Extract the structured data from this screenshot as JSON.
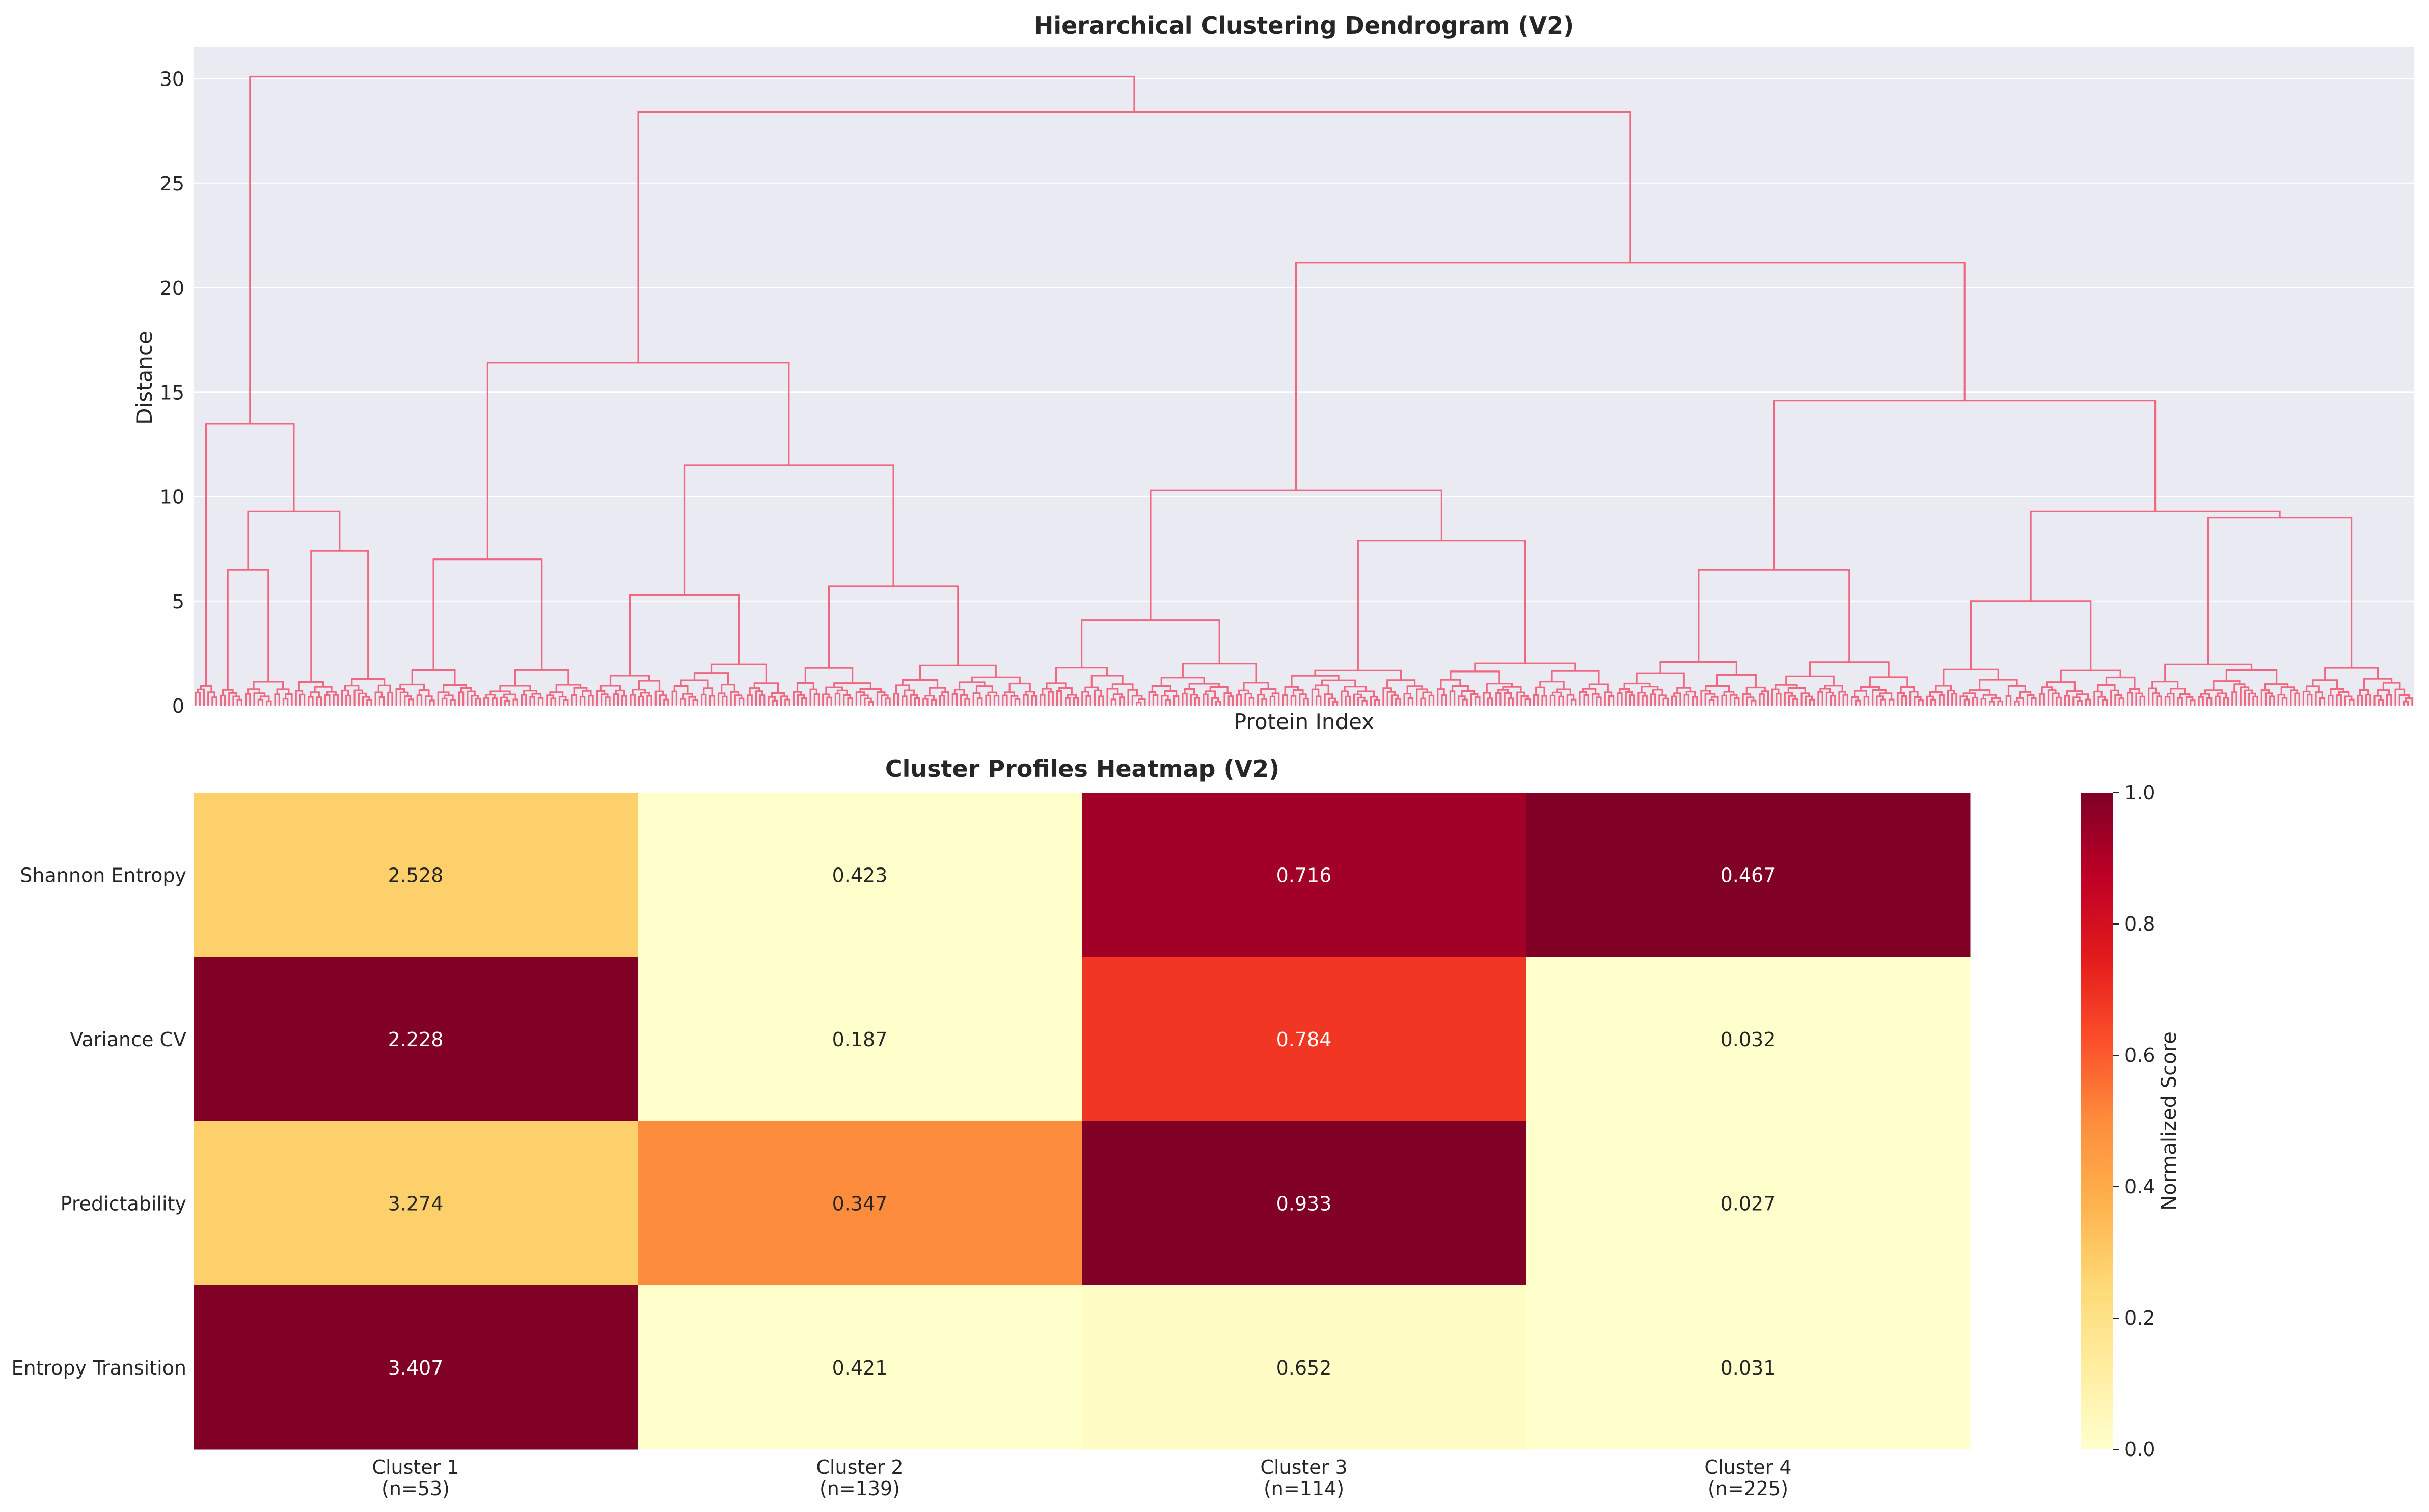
{
  "chart_data": [
    {
      "type": "dendrogram",
      "title": "Hierarchical Clustering Dendrogram (V2)",
      "xlabel": "Protein Index",
      "ylabel": "Distance",
      "ylim": [
        0,
        31.5
      ],
      "yticks": [
        0,
        5,
        10,
        15,
        20,
        25,
        30
      ],
      "grid": true,
      "link_color": "#f0677f",
      "background_color": "#eaeaf2",
      "n_leaves": 531,
      "major_merges": [
        {
          "x": [
            5,
            29
          ],
          "height": 30.1
        },
        {
          "x": [
            29,
            57
          ],
          "height": 28.4
        },
        {
          "x": [
            57,
            71
          ],
          "height": 21.2
        },
        {
          "x": [
            71,
            85
          ],
          "height": 14.6
        },
        {
          "x": [
            85,
            97
          ],
          "height": 9.3
        },
        {
          "x": [
            97,
            100
          ],
          "height": 9.0
        },
        {
          "x": [
            37,
            50
          ],
          "height": 11.5
        },
        {
          "x": [
            21,
            37
          ],
          "height": 16.4
        },
        {
          "x": [
            40,
            55
          ],
          "height": 10.3
        },
        {
          "x": [
            52,
            60
          ],
          "height": 7.9
        },
        {
          "x": [
            0,
            4
          ],
          "height": 13.5
        },
        {
          "x": [
            1,
            6
          ],
          "height": 9.3
        }
      ]
    },
    {
      "type": "heatmap",
      "title": "Cluster Profiles Heatmap (V2)",
      "columns": [
        "Cluster 1\n(n=53)",
        "Cluster 2\n(n=139)",
        "Cluster 3\n(n=114)",
        "Cluster 4\n(n=225)"
      ],
      "rows": [
        "Shannon Entropy",
        "Variance CV",
        "Predictability",
        "Entropy Transition"
      ],
      "annotations": [
        [
          "2.528",
          "0.423",
          "0.716",
          "0.467"
        ],
        [
          "2.228",
          "0.187",
          "0.784",
          "0.032"
        ],
        [
          "3.274",
          "0.347",
          "0.933",
          "0.027"
        ],
        [
          "3.407",
          "0.421",
          "0.652",
          "0.031"
        ]
      ],
      "normalized_values": [
        [
          0.28,
          0.0,
          0.93,
          1.0
        ],
        [
          1.0,
          0.0,
          0.68,
          0.0
        ],
        [
          0.28,
          0.5,
          1.0,
          0.0
        ],
        [
          1.0,
          0.0,
          0.02,
          0.0
        ]
      ],
      "colormap": "YlOrRd",
      "colorbar": {
        "label": "Normalized Score",
        "range": [
          0.0,
          1.0
        ],
        "ticks": [
          "0.0",
          "0.2",
          "0.4",
          "0.6",
          "0.8",
          "1.0"
        ]
      }
    }
  ]
}
